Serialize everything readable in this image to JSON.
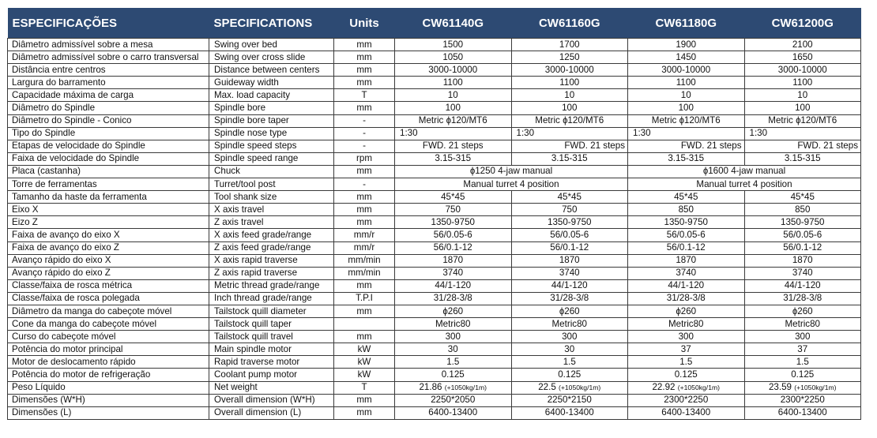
{
  "header": {
    "pt": "ESPECIFICAÇÕES",
    "en": "SPECIFICATIONS",
    "units": "Units",
    "models": [
      "CW61140G",
      "CW61160G",
      "CW61180G",
      "CW61200G"
    ]
  },
  "rows": [
    {
      "pt": "Diâmetro admissível sobre a mesa",
      "en": "Swing over bed",
      "unit": "mm",
      "values": [
        "1500",
        "1700",
        "1900",
        "2100"
      ]
    },
    {
      "pt": "Diâmetro admissível sobre o carro transversal",
      "en": "Swing over cross slide",
      "unit": "mm",
      "values": [
        "1050",
        "1250",
        "1450",
        "1650"
      ]
    },
    {
      "pt": "Distância entre centros",
      "en": "Distance between centers",
      "unit": "mm",
      "values": [
        "3000-10000",
        "3000-10000",
        "3000-10000",
        "3000-10000"
      ]
    },
    {
      "pt": "Largura do barramento",
      "en": "Guideway width",
      "unit": "mm",
      "values": [
        "1100",
        "1100",
        "1100",
        "1100"
      ]
    },
    {
      "pt": "Capacidade máxima de carga",
      "en": "Max. load capacity",
      "unit": "T",
      "values": [
        "10",
        "10",
        "10",
        "10"
      ]
    },
    {
      "pt": "Diâmetro do Spindle",
      "en": "Spindle bore",
      "unit": "mm",
      "values": [
        "100",
        "100",
        "100",
        "100"
      ]
    },
    {
      "pt": "Diâmetro do Spindle - Conico",
      "en": "Spindle bore taper",
      "unit": "-",
      "values": [
        "Metric ɸ120/MT6",
        "Metric ɸ120/MT6",
        "Metric ɸ120/MT6",
        "Metric ɸ120/MT6"
      ]
    },
    {
      "pt": "Tipo do Spindle",
      "en": "Spindle nose type",
      "unit": "-",
      "values": [
        "1:30",
        "1:30",
        "1:30",
        "1:30"
      ]
    },
    {
      "pt": "Etapas de velocidade do Spindle",
      "en": "Spindle speed steps",
      "unit": "-",
      "values": [
        "FWD. 21 steps",
        "FWD. 21 steps",
        "FWD. 21 steps",
        "FWD. 21 steps"
      ]
    },
    {
      "pt": "Faixa de velocidade do Spindle",
      "en": "Spindle speed range",
      "unit": "rpm",
      "values": [
        "3.15-315",
        "3.15-315",
        "3.15-315",
        "3.15-315"
      ]
    },
    {
      "pt": "Placa (castanha)",
      "en": "Chuck",
      "unit": "mm",
      "spans": [
        "ɸ1250 4-jaw manual",
        "ɸ1600 4-jaw manual"
      ]
    },
    {
      "pt": "Torre de ferramentas",
      "en": "Turret/tool post",
      "unit": "-",
      "spans": [
        "Manual turret 4 position",
        "Manual turret 4 position"
      ]
    },
    {
      "pt": "Tamanho da haste da ferramenta",
      "en": "Tool shank size",
      "unit": "mm",
      "values": [
        "45*45",
        "45*45",
        "45*45",
        "45*45"
      ]
    },
    {
      "pt": "Eixo X",
      "en": "X axis travel",
      "unit": "mm",
      "values": [
        "750",
        "750",
        "850",
        "850"
      ]
    },
    {
      "pt": "Eizo Z",
      "en": "Z axis travel",
      "unit": "mm",
      "values": [
        "1350-9750",
        "1350-9750",
        "1350-9750",
        "1350-9750"
      ]
    },
    {
      "pt": "Faixa de avanço do eixo X",
      "en": "X axis feed grade/range",
      "unit": "mm/r",
      "values": [
        "56/0.05-6",
        "56/0.05-6",
        "56/0.05-6",
        "56/0.05-6"
      ]
    },
    {
      "pt": "Faixa de avanço do eixo Z",
      "en": "Z axis feed grade/range",
      "unit": "mm/r",
      "values": [
        "56/0.1-12",
        "56/0.1-12",
        "56/0.1-12",
        "56/0.1-12"
      ]
    },
    {
      "pt": "Avanço rápido do eixo X",
      "en": "X axis rapid traverse",
      "unit": "mm/min",
      "values": [
        "1870",
        "1870",
        "1870",
        "1870"
      ]
    },
    {
      "pt": "Avanço rápido do eixo Z",
      "en": "Z axis rapid traverse",
      "unit": "mm/min",
      "values": [
        "3740",
        "3740",
        "3740",
        "3740"
      ]
    },
    {
      "pt": "Classe/faixa de rosca métrica",
      "en": "Metric thread grade/range",
      "unit": "mm",
      "values": [
        "44/1-120",
        "44/1-120",
        "44/1-120",
        "44/1-120"
      ]
    },
    {
      "pt": "Classe/faixa de rosca polegada",
      "en": "Inch thread grade/range",
      "unit": "T.P.I",
      "values": [
        "31/28-3/8",
        "31/28-3/8",
        "31/28-3/8",
        "31/28-3/8"
      ]
    },
    {
      "pt": "Diâmetro da manga do cabeçote móvel",
      "en": "Tailstock quill diameter",
      "unit": "mm",
      "values": [
        "ɸ260",
        "ɸ260",
        "ɸ260",
        "ɸ260"
      ]
    },
    {
      "pt": "Cone da manga do cabeçote móvel",
      "en": "Tailstock quill taper",
      "unit": "",
      "values": [
        "Metric80",
        "Metric80",
        "Metric80",
        "Metric80"
      ]
    },
    {
      "pt": "Curso do cabeçote móvel",
      "en": "Tailstock quill travel",
      "unit": "mm",
      "values": [
        "300",
        "300",
        "300",
        "300"
      ]
    },
    {
      "pt": "Potência do motor principal",
      "en": "Main spindle motor",
      "unit": "kW",
      "values": [
        "30",
        "30",
        "37",
        "37"
      ]
    },
    {
      "pt": "Motor de deslocamento rápido",
      "en": "Rapid traverse motor",
      "unit": "kW",
      "values": [
        "1.5",
        "1.5",
        "1.5",
        "1.5"
      ]
    },
    {
      "pt": "Potência do motor de refrigeração",
      "en": "Coolant pump motor",
      "unit": "kW",
      "values": [
        "0.125",
        "0.125",
        "0.125",
        "0.125"
      ]
    },
    {
      "pt": "Peso Líquido",
      "en": "Net weight",
      "unit": "T",
      "weights": [
        {
          "main": "21.86",
          "note": "(+1050kg/1m)"
        },
        {
          "main": "22.5",
          "note": "(+1050kg/1m)"
        },
        {
          "main": "22.92",
          "note": "(+1050kg/1m)"
        },
        {
          "main": "23.59",
          "note": "(+1050kg/1m)"
        }
      ]
    },
    {
      "pt": "Dimensões (W*H)",
      "en": "Overall dimension (W*H)",
      "unit": "mm",
      "values": [
        "2250*2050",
        "2250*2150",
        "2300*2250",
        "2300*2250"
      ]
    },
    {
      "pt": "Dimensões (L)",
      "en": "Overall dimension (L)",
      "unit": "mm",
      "values": [
        "6400-13400",
        "6400-13400",
        "6400-13400",
        "6400-13400"
      ]
    }
  ]
}
